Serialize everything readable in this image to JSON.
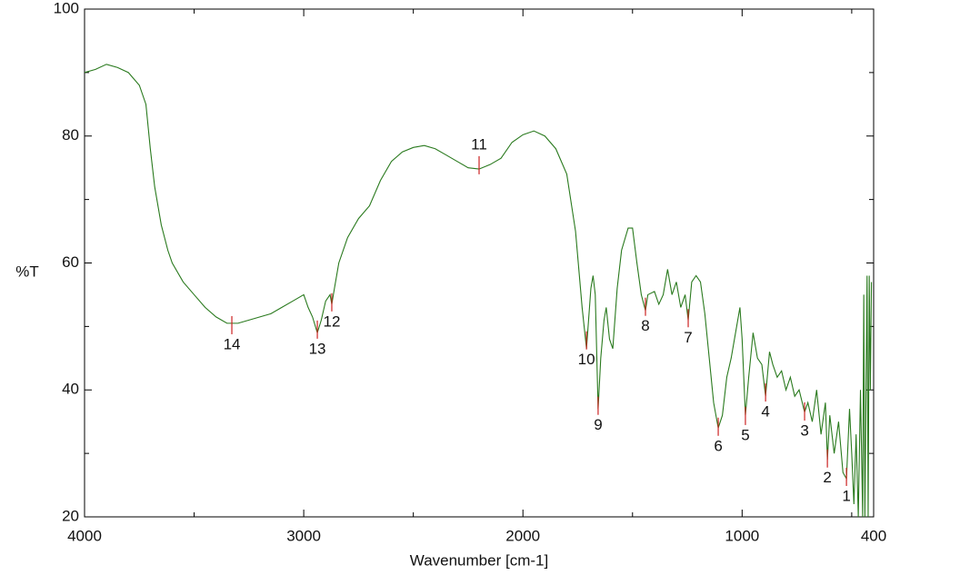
{
  "chart_data": {
    "type": "line",
    "xlabel": "Wavenumber [cm-1]",
    "ylabel": "%T",
    "color": "#2a7a1e",
    "peak_color": "#cc2222",
    "xlim": [
      4000,
      400
    ],
    "xticks": [
      4000,
      3000,
      2000,
      1000,
      400
    ],
    "xminor": [
      3500,
      2500,
      1500,
      500
    ],
    "ylim": [
      20,
      100
    ],
    "yticks": [
      20,
      40,
      60,
      80,
      100
    ],
    "yminor": [
      30,
      50,
      70,
      90
    ],
    "x": [
      4000,
      3950,
      3900,
      3850,
      3800,
      3750,
      3720,
      3700,
      3680,
      3650,
      3620,
      3600,
      3550,
      3500,
      3450,
      3400,
      3350,
      3300,
      3250,
      3200,
      3150,
      3100,
      3050,
      3000,
      2980,
      2960,
      2938,
      2920,
      2900,
      2880,
      2872,
      2860,
      2840,
      2800,
      2750,
      2700,
      2650,
      2600,
      2550,
      2500,
      2450,
      2400,
      2350,
      2300,
      2250,
      2200,
      2150,
      2100,
      2050,
      2000,
      1950,
      1900,
      1850,
      1800,
      1760,
      1730,
      1710,
      1690,
      1680,
      1670,
      1657,
      1645,
      1630,
      1620,
      1605,
      1590,
      1570,
      1550,
      1520,
      1500,
      1480,
      1460,
      1441,
      1430,
      1400,
      1380,
      1360,
      1340,
      1320,
      1300,
      1280,
      1260,
      1246,
      1230,
      1210,
      1190,
      1170,
      1150,
      1130,
      1109,
      1090,
      1070,
      1050,
      1030,
      1010,
      1000,
      985,
      970,
      950,
      930,
      910,
      893,
      875,
      860,
      840,
      820,
      800,
      780,
      760,
      740,
      715,
      700,
      680,
      660,
      640,
      620,
      611,
      600,
      580,
      560,
      540,
      524,
      510,
      500,
      490,
      480,
      470,
      460,
      450,
      445,
      440,
      430,
      425,
      420,
      415,
      410
    ],
    "values": [
      90,
      90.5,
      91.3,
      90.8,
      90,
      88,
      85,
      78,
      72,
      66,
      62,
      60,
      57,
      55,
      53,
      51.5,
      50.5,
      50.5,
      51,
      51.5,
      52,
      53,
      54,
      55,
      53,
      51.5,
      49,
      51,
      54,
      55,
      53.5,
      56,
      60,
      64,
      67,
      69,
      73,
      76,
      77.5,
      78.2,
      78.5,
      78,
      77,
      76,
      75,
      74.8,
      75.5,
      76.5,
      79,
      80.2,
      80.8,
      80,
      78,
      74,
      65,
      53,
      46.5,
      56,
      58,
      55,
      37,
      45,
      51,
      53,
      48,
      46.5,
      56,
      62,
      65.5,
      65.5,
      60,
      55,
      52.5,
      55,
      55.5,
      53.5,
      55,
      59,
      55,
      57,
      53,
      55,
      51,
      57,
      58,
      57,
      52,
      45,
      38,
      34,
      36,
      42,
      45,
      49,
      53,
      48,
      36,
      42,
      49,
      45,
      44,
      39,
      46,
      44,
      42,
      43,
      40,
      42,
      39,
      40,
      36.5,
      38,
      35,
      40,
      33,
      38,
      29,
      36,
      30,
      35,
      27,
      26,
      37,
      30,
      22,
      33,
      20,
      40,
      20,
      55,
      20,
      58,
      20,
      58,
      40,
      57
    ],
    "peaks": [
      {
        "label": "1",
        "x": 524,
        "y": 26.3
      },
      {
        "label": "2",
        "x": 611,
        "y": 29.2
      },
      {
        "label": "3",
        "x": 715,
        "y": 36.6
      },
      {
        "label": "4",
        "x": 893,
        "y": 39.6
      },
      {
        "label": "5",
        "x": 985,
        "y": 35.9
      },
      {
        "label": "6",
        "x": 1109,
        "y": 34.2
      },
      {
        "label": "7",
        "x": 1246,
        "y": 51.3
      },
      {
        "label": "8",
        "x": 1441,
        "y": 53.1
      },
      {
        "label": "9",
        "x": 1657,
        "y": 37.5
      },
      {
        "label": "10",
        "x": 1710,
        "y": 47.8
      },
      {
        "label": "11",
        "x": 2200,
        "y": 75.4
      },
      {
        "label": "12",
        "x": 2872,
        "y": 53.8
      },
      {
        "label": "13",
        "x": 2938,
        "y": 49.5
      },
      {
        "label": "14",
        "x": 3328,
        "y": 50.2
      }
    ]
  }
}
